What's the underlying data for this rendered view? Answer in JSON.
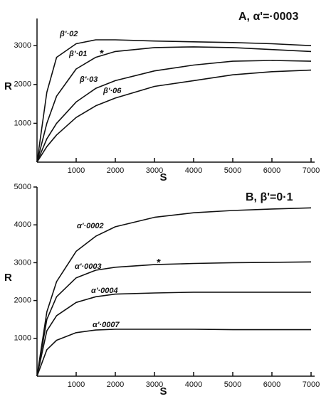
{
  "chart_data": [
    {
      "type": "line",
      "title": "A, α'=·0003",
      "x_label": "S",
      "y_label": "R",
      "x": [
        0,
        250,
        500,
        1000,
        1500,
        2000,
        3000,
        4000,
        5000,
        6000,
        7000
      ],
      "series": [
        {
          "name": "β'·02",
          "color": "#111111",
          "values": [
            0,
            1800,
            2700,
            3050,
            3150,
            3150,
            3120,
            3100,
            3080,
            3050,
            3000
          ]
        },
        {
          "name": "β'·01",
          "color": "#111111",
          "values": [
            0,
            1000,
            1700,
            2400,
            2700,
            2850,
            2950,
            2970,
            2950,
            2900,
            2850
          ]
        },
        {
          "name": "β'·03",
          "color": "#111111",
          "values": [
            0,
            600,
            1000,
            1550,
            1900,
            2100,
            2350,
            2500,
            2600,
            2620,
            2600
          ]
        },
        {
          "name": "β'·06",
          "color": "#111111",
          "values": [
            0,
            400,
            700,
            1150,
            1450,
            1650,
            1950,
            2100,
            2250,
            2330,
            2370
          ]
        }
      ],
      "annotations": [
        "*"
      ],
      "xlim": [
        0,
        7000
      ],
      "ylim": [
        0,
        3700
      ],
      "xticks": [
        1000,
        2000,
        3000,
        4000,
        5000,
        6000,
        7000
      ],
      "yticks": [
        1000,
        2000,
        3000
      ]
    },
    {
      "type": "line",
      "title": "B, β'=0·1",
      "x_label": "S",
      "y_label": "R",
      "x": [
        0,
        250,
        500,
        1000,
        1500,
        2000,
        3000,
        4000,
        5000,
        6000,
        7000
      ],
      "series": [
        {
          "name": "α'·0002",
          "color": "#111111",
          "values": [
            0,
            1700,
            2500,
            3300,
            3700,
            3950,
            4200,
            4320,
            4380,
            4420,
            4450
          ]
        },
        {
          "name": "α'·0003",
          "color": "#111111",
          "values": [
            0,
            1500,
            2100,
            2600,
            2800,
            2880,
            2950,
            2980,
            3000,
            3010,
            3020
          ]
        },
        {
          "name": "α'·0004",
          "color": "#111111",
          "values": [
            0,
            1200,
            1600,
            1950,
            2100,
            2170,
            2200,
            2220,
            2220,
            2220,
            2220
          ]
        },
        {
          "name": "α'·0007",
          "color": "#111111",
          "values": [
            0,
            700,
            950,
            1150,
            1220,
            1240,
            1240,
            1240,
            1230,
            1230,
            1230
          ]
        }
      ],
      "annotations": [
        "*"
      ],
      "xlim": [
        0,
        7000
      ],
      "ylim": [
        0,
        5000
      ],
      "xticks": [
        1000,
        2000,
        3000,
        4000,
        5000,
        6000,
        7000
      ],
      "yticks": [
        1000,
        2000,
        3000,
        4000,
        5000
      ]
    }
  ]
}
